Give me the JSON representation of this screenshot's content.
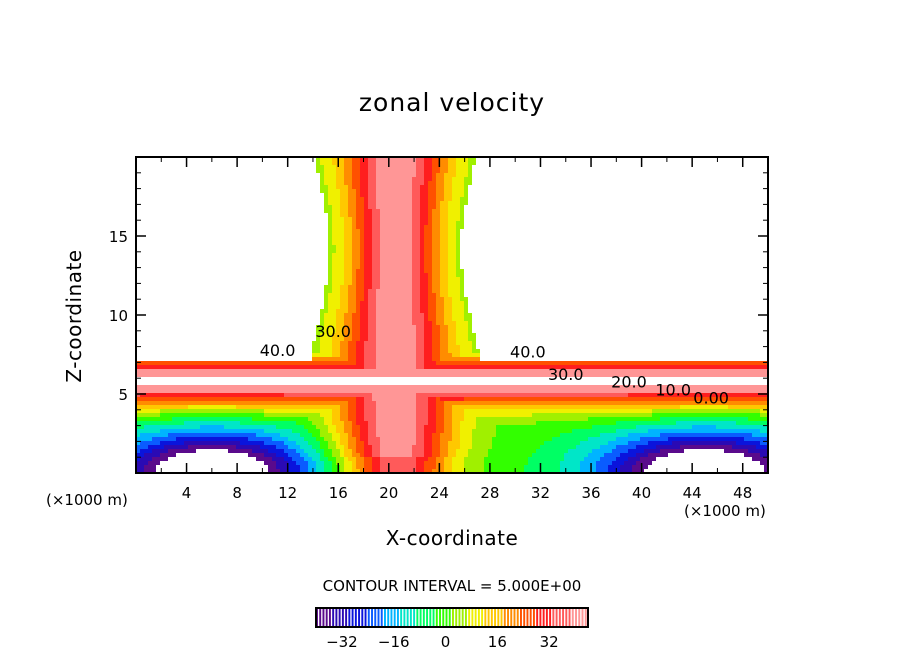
{
  "chart_data": {
    "type": "heatmap",
    "subtype": "filled-contour",
    "title": "zonal velocity",
    "xlabel": "X-coordinate",
    "ylabel": "Z-coordinate",
    "x_unit_label": "(×1000 m)",
    "xlim": [
      0,
      50
    ],
    "ylim": [
      0,
      20
    ],
    "x_ticks": [
      4,
      8,
      12,
      16,
      20,
      24,
      28,
      32,
      36,
      40,
      44,
      48
    ],
    "x_tick_labels": [
      "4",
      "8",
      "12",
      "16",
      "20",
      "24",
      "28",
      "32",
      "36",
      "40",
      "44",
      "48"
    ],
    "y_ticks": [
      5,
      10,
      15
    ],
    "y_tick_labels": [
      "5",
      "10",
      "15"
    ],
    "contour_interval_text": "CONTOUR INTERVAL = 5.000E+00",
    "contour_interval": 5.0,
    "contour_labels": [
      {
        "text": "40.0",
        "x": 11.2,
        "z": 7.4
      },
      {
        "text": "30.0",
        "x": 15.6,
        "z": 8.6
      },
      {
        "text": "40.0",
        "x": 31.0,
        "z": 7.3
      },
      {
        "text": "30.0",
        "x": 34.0,
        "z": 5.9
      },
      {
        "text": "20.0",
        "x": 39.0,
        "z": 5.4
      },
      {
        "text": "10.0",
        "x": 42.5,
        "z": 4.9
      },
      {
        "text": "0.00",
        "x": 45.5,
        "z": 4.4
      }
    ],
    "notes": "Strong westerly jet band near z=5-7 km; negative (dashed) velocities in lower corners x<14 and x>30; maxima ~38-42 in vertical column near x=16-26; blank regions above ~7 km outside column are unfilled (above color range).",
    "colorbar": {
      "min": -40,
      "max": 44,
      "ticks": [
        -32,
        -16,
        0,
        16,
        32
      ],
      "tick_labels": [
        "−32",
        "−16",
        "0",
        "16",
        "32"
      ],
      "colormap": "rainbow",
      "colors": [
        "#5a0a8c",
        "#2a0ab4",
        "#0a14dc",
        "#0a5cff",
        "#00b4ff",
        "#00e6c8",
        "#00ff64",
        "#32ff00",
        "#a0f000",
        "#f0f000",
        "#ffc800",
        "#ff8c00",
        "#ff5000",
        "#ff1e1e",
        "#ff5a5a",
        "#ff9696"
      ]
    }
  }
}
